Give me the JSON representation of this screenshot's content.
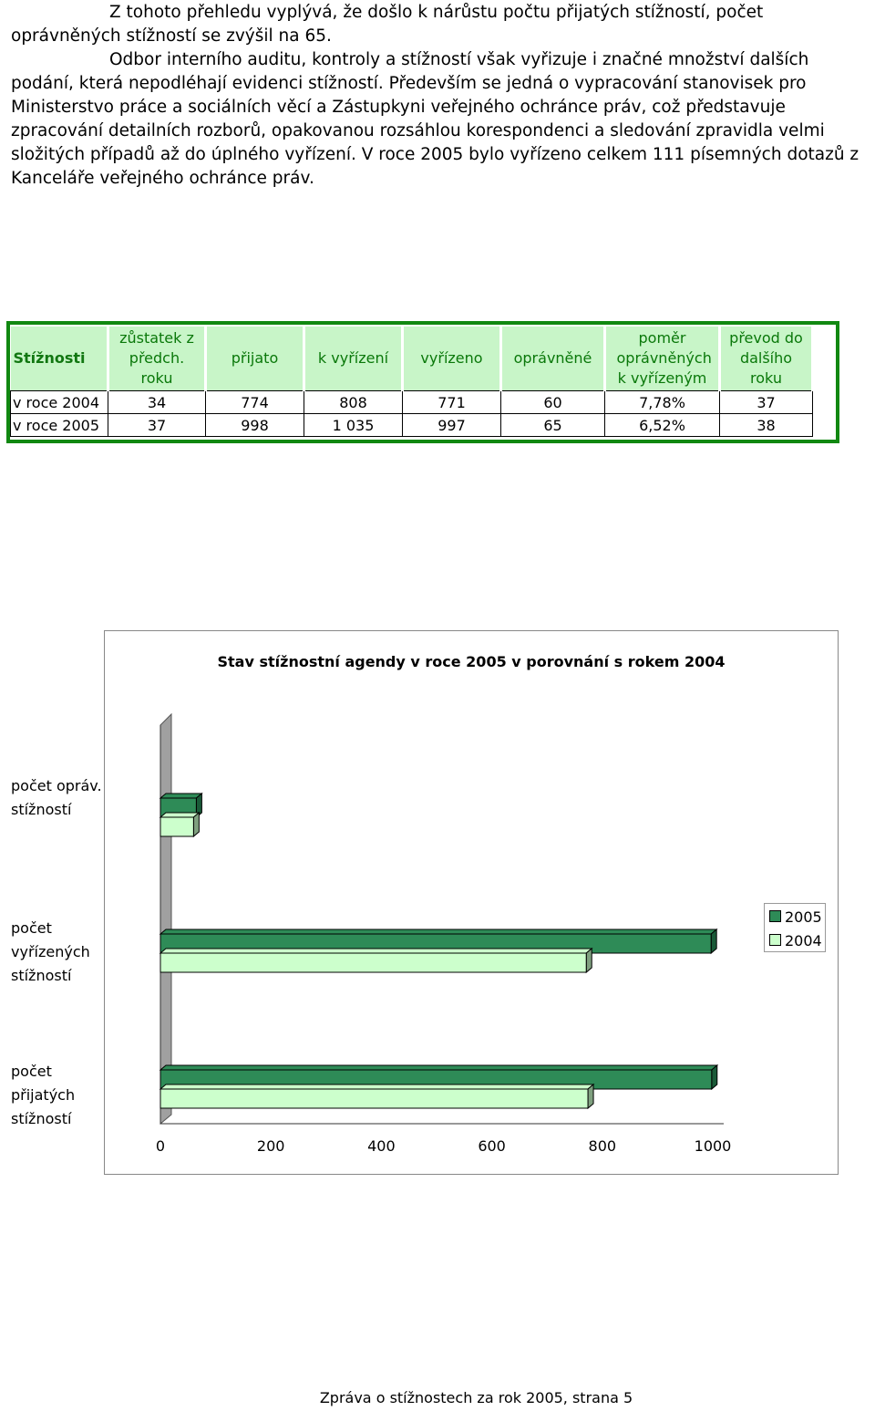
{
  "text": {
    "p1": "Z tohoto přehledu vyplývá, že došlo k nárůstu počtu přijatých stížností, počet oprávněných stížností se zvýšil na 65.",
    "p2": "Odbor interního auditu, kontroly a stížností však vyřizuje i značné množství dalších podání, která nepodléhají evidenci stížností. Především se jedná o vypracování stanovisek pro Ministerstvo práce a sociálních věcí a Zástupkyni veřejného ochránce práv, což představuje zpracování detailních rozborů, opakovanou rozsáhlou korespondenci a sledování zpravidla velmi složitých případů až do úplného vyřízení. V roce 2005 bylo vyřízeno celkem 111 písemných dotazů z Kanceláře veřejného ochránce práv."
  },
  "table": {
    "headers": [
      "Stížnosti",
      "zůstatek z předch. roku",
      "přijato",
      "k vyřízení",
      "vyřízeno",
      "oprávněné",
      "poměr oprávněných k vyřízeným",
      "převod do dalšího roku"
    ],
    "rows": [
      [
        "v roce 2004",
        "34",
        "774",
        "808",
        "771",
        "60",
        "7,78%",
        "37"
      ],
      [
        "v roce 2005",
        "37",
        "998",
        "1 035",
        "997",
        "65",
        "6,52%",
        "38"
      ]
    ]
  },
  "chart_data": {
    "type": "bar",
    "orientation": "horizontal",
    "title": "Stav stížnostní agendy v roce 2005 v porovnání s rokem 2004",
    "categories": [
      "počet opráv. stížností",
      "počet vyřízených stížností",
      "počet přijatých stížností"
    ],
    "series": [
      {
        "name": "2005",
        "values": [
          65,
          997,
          998
        ],
        "color": "#2e8b57"
      },
      {
        "name": "2004",
        "values": [
          60,
          771,
          774
        ],
        "color": "#ccffcc"
      }
    ],
    "xlim": [
      0,
      1000
    ],
    "x_ticks": [
      "0",
      "200",
      "400",
      "600",
      "800",
      "1000"
    ],
    "legend_position": "right"
  },
  "footer": "Zpráva o stížnostech za rok 2005, strana 5"
}
